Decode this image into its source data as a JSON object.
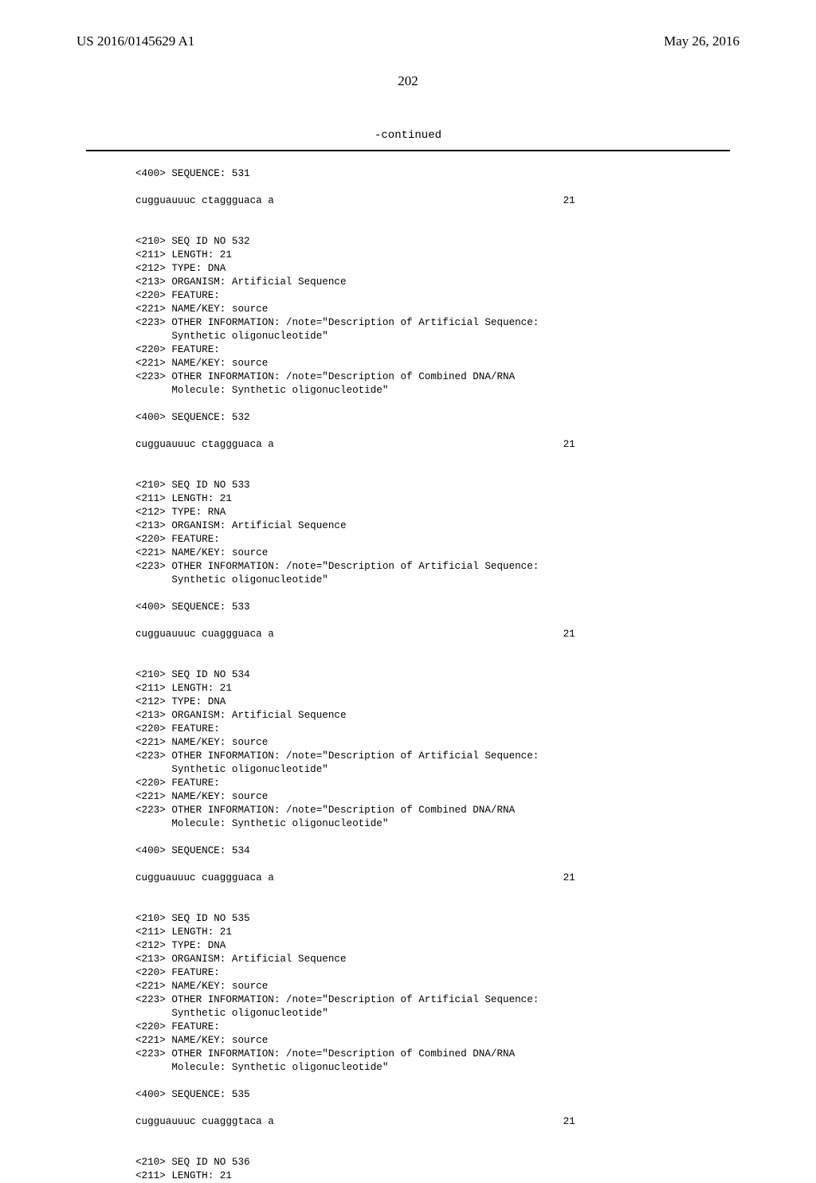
{
  "header": {
    "pub_number": "US 2016/0145629 A1",
    "pub_date": "May 26, 2016"
  },
  "page_number": "202",
  "continued_label": "-continued",
  "body_text": "<400> SEQUENCE: 531\n\ncugguauuuc ctaggguaca a                                                21\n\n\n<210> SEQ ID NO 532\n<211> LENGTH: 21\n<212> TYPE: DNA\n<213> ORGANISM: Artificial Sequence\n<220> FEATURE:\n<221> NAME/KEY: source\n<223> OTHER INFORMATION: /note=\"Description of Artificial Sequence:\n      Synthetic oligonucleotide\"\n<220> FEATURE:\n<221> NAME/KEY: source\n<223> OTHER INFORMATION: /note=\"Description of Combined DNA/RNA\n      Molecule: Synthetic oligonucleotide\"\n\n<400> SEQUENCE: 532\n\ncugguauuuc ctaggguaca a                                                21\n\n\n<210> SEQ ID NO 533\n<211> LENGTH: 21\n<212> TYPE: RNA\n<213> ORGANISM: Artificial Sequence\n<220> FEATURE:\n<221> NAME/KEY: source\n<223> OTHER INFORMATION: /note=\"Description of Artificial Sequence:\n      Synthetic oligonucleotide\"\n\n<400> SEQUENCE: 533\n\ncugguauuuc cuaggguaca a                                                21\n\n\n<210> SEQ ID NO 534\n<211> LENGTH: 21\n<212> TYPE: DNA\n<213> ORGANISM: Artificial Sequence\n<220> FEATURE:\n<221> NAME/KEY: source\n<223> OTHER INFORMATION: /note=\"Description of Artificial Sequence:\n      Synthetic oligonucleotide\"\n<220> FEATURE:\n<221> NAME/KEY: source\n<223> OTHER INFORMATION: /note=\"Description of Combined DNA/RNA\n      Molecule: Synthetic oligonucleotide\"\n\n<400> SEQUENCE: 534\n\ncugguauuuc cuaggguaca a                                                21\n\n\n<210> SEQ ID NO 535\n<211> LENGTH: 21\n<212> TYPE: DNA\n<213> ORGANISM: Artificial Sequence\n<220> FEATURE:\n<221> NAME/KEY: source\n<223> OTHER INFORMATION: /note=\"Description of Artificial Sequence:\n      Synthetic oligonucleotide\"\n<220> FEATURE:\n<221> NAME/KEY: source\n<223> OTHER INFORMATION: /note=\"Description of Combined DNA/RNA\n      Molecule: Synthetic oligonucleotide\"\n\n<400> SEQUENCE: 535\n\ncugguauuuc cuagggtaca a                                                21\n\n\n<210> SEQ ID NO 536\n<211> LENGTH: 21"
}
